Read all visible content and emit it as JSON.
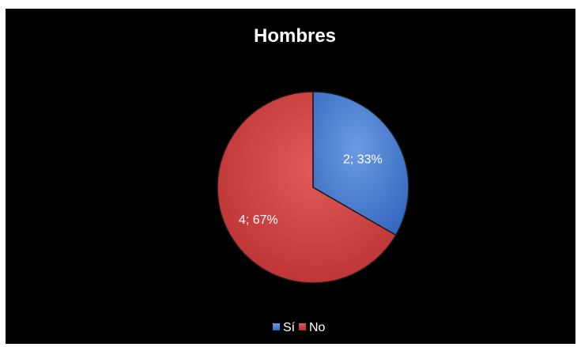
{
  "chart_data": {
    "type": "pie",
    "title": "Hombres",
    "categories": [
      "Sí",
      "No"
    ],
    "values": [
      2,
      4
    ],
    "percentages": [
      "33%",
      "67%"
    ],
    "data_labels": [
      "2; 33%",
      "4; 67%"
    ],
    "colors": [
      "#4a7fd0",
      "#d64444"
    ],
    "background": "#000000",
    "legend_position": "bottom",
    "start_angle_deg": 0,
    "direction": "clockwise"
  }
}
